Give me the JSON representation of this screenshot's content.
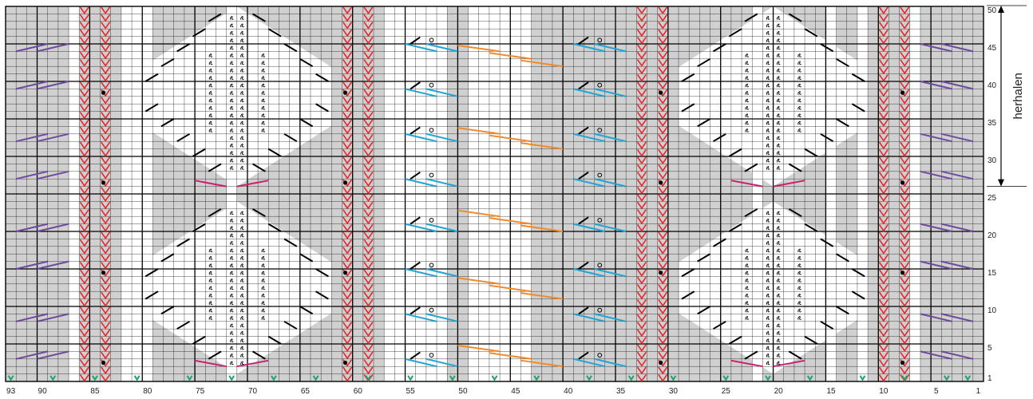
{
  "chart": {
    "columns": 93,
    "rows": 50,
    "stitch_label_columns": [
      93,
      90,
      85,
      80,
      75,
      70,
      65,
      60,
      55,
      50,
      45,
      40,
      35,
      30,
      25,
      20,
      15,
      10,
      5,
      1
    ],
    "row_labels": [
      50,
      45,
      40,
      35,
      30,
      25,
      20,
      15,
      10,
      5,
      1
    ],
    "repeat_label": "herhalen",
    "repeat_rows": [
      27,
      50
    ]
  },
  "colors": {
    "grey_stitch": "#d0d0d0",
    "red_cable": "#e8262a",
    "purple_cross": "#6e4a9e",
    "cyan_cross": "#1fa4d6",
    "orange_cross": "#f08a2a",
    "magenta_cross": "#cc1e6e",
    "green_slip": "#1aa86a",
    "grid_line": "#000000"
  },
  "icons": {
    "dot": "bobble-dot-icon",
    "twisted": "twisted-stitch-icon",
    "yarnover": "yarn-over-icon",
    "slip": "slip-stitch-icon"
  }
}
